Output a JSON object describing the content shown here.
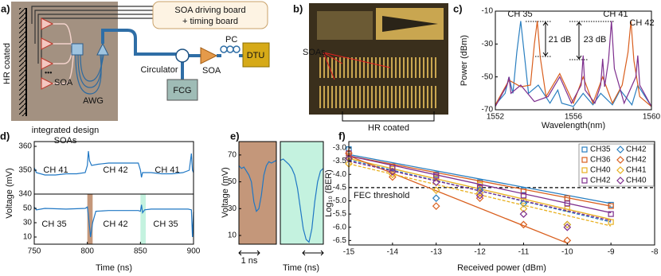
{
  "diagram": {
    "panel_a": {
      "label": "a)",
      "hr": "HR coated",
      "board": [
        "SOA driving board",
        "+ timing board"
      ],
      "soa_chip": "SOA",
      "awg": "AWG",
      "chip": [
        "integrated design",
        "SOAs"
      ],
      "circulator": "Circulator",
      "soa": "SOA",
      "pc": "PC",
      "dtu": "DTU",
      "fcg": "FCG"
    },
    "panel_b": {
      "label": "b)",
      "soas": "SOAs",
      "hr": "HR coated"
    }
  },
  "chart_data": [
    {
      "type": "line",
      "panel_label": "c)",
      "xlabel": "Wavelength(nm)",
      "ylabel": "Power (dBm)",
      "xlim": [
        1552,
        1560
      ],
      "ylim": [
        -70,
        -10
      ],
      "xticks": [
        1552,
        1556,
        1560
      ],
      "yticks": [
        -10,
        -30,
        -50,
        -70
      ],
      "annotations": [
        "CH 35",
        "CH 41",
        "CH 42",
        "21 dB",
        "23 dB"
      ],
      "series": [
        {
          "color": "#2a7fc0",
          "x": [
            1552,
            1552.5,
            1552.7,
            1552.9,
            1553.1,
            1553.3,
            1553.5,
            1553.7,
            1554.2,
            1554.8,
            1555.2,
            1555.4,
            1556,
            1556.5,
            1557,
            1557.4,
            1558,
            1558.4,
            1559,
            1559.3,
            1560
          ],
          "values": [
            -67,
            -60,
            -50,
            -60,
            -35,
            -16,
            -38,
            -60,
            -55,
            -66,
            -58,
            -66,
            -68,
            -60,
            -67,
            -60,
            -67,
            -58,
            -67,
            -55,
            -68
          ]
        },
        {
          "color": "#d95f1e",
          "x": [
            1552,
            1552.7,
            1553.3,
            1553.8,
            1554.0,
            1554.15,
            1554.3,
            1554.6,
            1555.3,
            1556,
            1556.5,
            1557,
            1557.5,
            1558,
            1558.5,
            1558.8,
            1558.95,
            1559.1,
            1559.4,
            1560
          ],
          "values": [
            -67,
            -52,
            -56,
            -55,
            -30,
            -16,
            -38,
            -62,
            -48,
            -66,
            -50,
            -66,
            -50,
            -66,
            -55,
            -35,
            -16,
            -40,
            -62,
            -68
          ]
        },
        {
          "color": "#7e2f8e",
          "x": [
            1552,
            1552.6,
            1552.7,
            1552.8,
            1553.3,
            1554,
            1554.7,
            1555.3,
            1555.9,
            1556.4,
            1556.5,
            1556.6,
            1557.1,
            1557.4,
            1557.5,
            1557.6,
            1557.8,
            1557.95,
            1558.1,
            1558.6,
            1559.2,
            1559.3,
            1559.4,
            1560
          ],
          "values": [
            -68,
            -55,
            -50,
            -60,
            -55,
            -65,
            -62,
            -50,
            -66,
            -55,
            -37,
            -58,
            -66,
            -55,
            -39,
            -56,
            -40,
            -16,
            -45,
            -66,
            -50,
            -37,
            -55,
            -68
          ]
        }
      ]
    },
    {
      "type": "line",
      "panel_label": "d)",
      "xlim": [
        750,
        900
      ],
      "ylim": [
        340,
        362
      ],
      "yticks": [
        340,
        350,
        360
      ],
      "annotations": [
        "CH 41",
        "CH 42",
        "CH 41"
      ],
      "series": [
        {
          "color": "#1f77c4",
          "x": [
            750,
            752,
            760,
            770,
            780,
            790,
            798,
            800,
            801,
            802,
            804,
            810,
            820,
            830,
            840,
            848,
            850,
            851,
            852,
            854,
            860,
            870,
            880,
            890,
            896,
            898,
            899,
            900
          ],
          "values": [
            351,
            349,
            348,
            348,
            348.5,
            348.5,
            349,
            352,
            358,
            354,
            352,
            352.5,
            353,
            353,
            353,
            353,
            350,
            347,
            349,
            349,
            349,
            348.5,
            348.5,
            349,
            350,
            357,
            350,
            349
          ]
        }
      ]
    },
    {
      "type": "line",
      "xlabel": "Time (ns)",
      "ylabel": "Voltage (mV)",
      "xlim": [
        750,
        900
      ],
      "ylim": [
        0,
        70
      ],
      "xticks": [
        750,
        800,
        850,
        900
      ],
      "yticks": [
        10,
        30,
        50
      ],
      "annotations": [
        "CH 35",
        "CH 42",
        "CH 35"
      ],
      "highlights": [
        {
          "x": [
            800,
            805
          ],
          "color": "#c4977a"
        },
        {
          "x": [
            850,
            855
          ],
          "color": "#c4f2df"
        }
      ],
      "series": [
        {
          "color": "#1f77c4",
          "x": [
            750,
            752,
            760,
            780,
            798,
            800,
            801,
            803,
            805,
            808,
            820,
            840,
            848,
            850,
            851,
            852,
            854,
            860,
            880,
            895,
            898,
            899,
            900
          ],
          "values": [
            52,
            48,
            50,
            49,
            50,
            52,
            40,
            10,
            30,
            46,
            47,
            47,
            47,
            46,
            55,
            44,
            48,
            49,
            49,
            49,
            48,
            10,
            45
          ]
        }
      ]
    },
    {
      "type": "line",
      "panel_label": "e)",
      "ylabel": "Voltage (mV)",
      "xlim": [
        0,
        3
      ],
      "ylim": [
        3.5,
        80
      ],
      "yticks": [
        10,
        30,
        50,
        70
      ],
      "background": "#c4977a",
      "annotations": [
        "1 ns"
      ],
      "series": [
        {
          "color": "#1f77c4",
          "x": [
            0,
            0.2,
            0.4,
            0.6,
            0.8,
            1.0,
            1.2,
            1.4,
            1.6,
            1.8,
            2.0,
            2.2,
            2.4,
            2.6,
            2.8,
            3.0
          ],
          "values": [
            62,
            60,
            61,
            58,
            55,
            50,
            35,
            28,
            30,
            40,
            55,
            62,
            65,
            64,
            65,
            66
          ]
        }
      ]
    },
    {
      "type": "line",
      "xlabel": "Time (ns)",
      "xlim": [
        0,
        3
      ],
      "ylim": [
        3.5,
        80
      ],
      "background": "#c4f2df",
      "series": [
        {
          "color": "#1f77c4",
          "x": [
            0,
            0.2,
            0.4,
            0.6,
            0.8,
            1.0,
            1.2,
            1.4,
            1.6,
            1.8,
            2.0,
            2.2,
            2.4,
            2.6,
            2.8,
            3.0
          ],
          "values": [
            66,
            67,
            65,
            63,
            60,
            55,
            45,
            30,
            15,
            7,
            5,
            15,
            35,
            50,
            58,
            60
          ]
        }
      ]
    },
    {
      "type": "scatter",
      "panel_label": "f)",
      "xlabel": "Received power (dBm)",
      "ylabel": "Log₁₀ (BER)",
      "xlim": [
        -15,
        -8
      ],
      "ylim": [
        -6.67,
        -2.76
      ],
      "xticks": [
        -15,
        -14,
        -13,
        -12,
        -11,
        -10,
        -9,
        -8
      ],
      "yticks": [
        {
          "value": -3,
          "label": "-3.0"
        },
        -3.5,
        {
          "value": -4,
          "label": "-4.0"
        },
        -4.5,
        {
          "value": -5,
          "label": "-5.0"
        },
        -5.5,
        {
          "value": -6,
          "label": "-6.0"
        },
        -6.5
      ],
      "threshold": {
        "value": -4.5,
        "label": "FEC threshold"
      },
      "legend": true,
      "series": [
        {
          "name": "CH35",
          "color": "#2a7fc0",
          "marker": "square",
          "x": [
            -15,
            -14,
            -13,
            -12,
            -11,
            -10,
            -9
          ],
          "values": [
            -3.05,
            -3.7,
            -4.0,
            -4.3,
            -4.6,
            -4.9,
            -5.15
          ],
          "fit": {
            "x": [
              -15,
              -9
            ],
            "values": [
              -3.25,
              -5.1
            ]
          }
        },
        {
          "name": "CH36",
          "color": "#d95f1e",
          "marker": "square",
          "x": [
            -15,
            -14,
            -13,
            -12,
            -11,
            -10,
            -9
          ],
          "values": [
            -3.3,
            -3.7,
            -4.1,
            -4.35,
            -4.65,
            -4.9,
            -5.2
          ],
          "fit": {
            "x": [
              -15,
              -9
            ],
            "values": [
              -3.3,
              -5.2
            ]
          }
        },
        {
          "name": "CH40",
          "color": "#e8b020",
          "marker": "square",
          "x": [
            -15,
            -14,
            -13,
            -12,
            -11,
            -10,
            -9
          ],
          "values": [
            -3.35,
            -3.8,
            -4.15,
            -4.4,
            -5.0,
            -5.3,
            -5.8
          ],
          "fit": {
            "x": [
              -15,
              -9
            ],
            "values": [
              -3.4,
              -5.7
            ]
          }
        },
        {
          "name": "CH42",
          "color": "#7e2f8e",
          "marker": "square",
          "x": [
            -15,
            -14,
            -13,
            -12,
            -11,
            -10,
            -9
          ],
          "values": [
            -3.2,
            -3.75,
            -4.05,
            -4.5,
            -4.8,
            -5.1,
            -5.5
          ],
          "fit": {
            "x": [
              -15,
              -9
            ],
            "values": [
              -3.3,
              -5.45
            ]
          }
        },
        {
          "name": "CH42",
          "color": "#2a7fc0",
          "marker": "diamond",
          "dashed": true,
          "x": [
            -15,
            -14,
            -13,
            -12,
            -11,
            -10
          ],
          "values": [
            -3.4,
            -3.9,
            -4.9,
            -4.6,
            -5.1,
            -5.9
          ],
          "fit": {
            "x": [
              -15,
              -9
            ],
            "values": [
              -3.45,
              -5.8
            ]
          }
        },
        {
          "name": "CH42",
          "color": "#d95f1e",
          "marker": "diamond",
          "x": [
            -15,
            -14,
            -13,
            -12,
            -11,
            -10
          ],
          "values": [
            -3.2,
            -4.1,
            -5.2,
            -4.9,
            -5.9,
            -6.5
          ],
          "fit": {
            "x": [
              -15,
              -10
            ],
            "values": [
              -3.3,
              -6.6
            ]
          }
        },
        {
          "name": "CH41",
          "color": "#e8b020",
          "marker": "diamond",
          "dashed": true,
          "x": [
            -15,
            -14,
            -13,
            -12,
            -11,
            -10
          ],
          "values": [
            -3.6,
            -4.0,
            -4.6,
            -4.7,
            -5.3,
            -5.9
          ],
          "fit": {
            "x": [
              -15,
              -9
            ],
            "values": [
              -3.6,
              -5.95
            ]
          }
        },
        {
          "name": "CH40",
          "color": "#7e2f8e",
          "marker": "diamond",
          "dashed": true,
          "x": [
            -15,
            -14,
            -13,
            -12,
            -11,
            -10
          ],
          "values": [
            -3.4,
            -3.9,
            -4.3,
            -4.8,
            -5.5,
            -6.0
          ],
          "fit": {
            "x": [
              -15,
              -9
            ],
            "values": [
              -3.5,
              -5.75
            ]
          }
        }
      ]
    }
  ]
}
